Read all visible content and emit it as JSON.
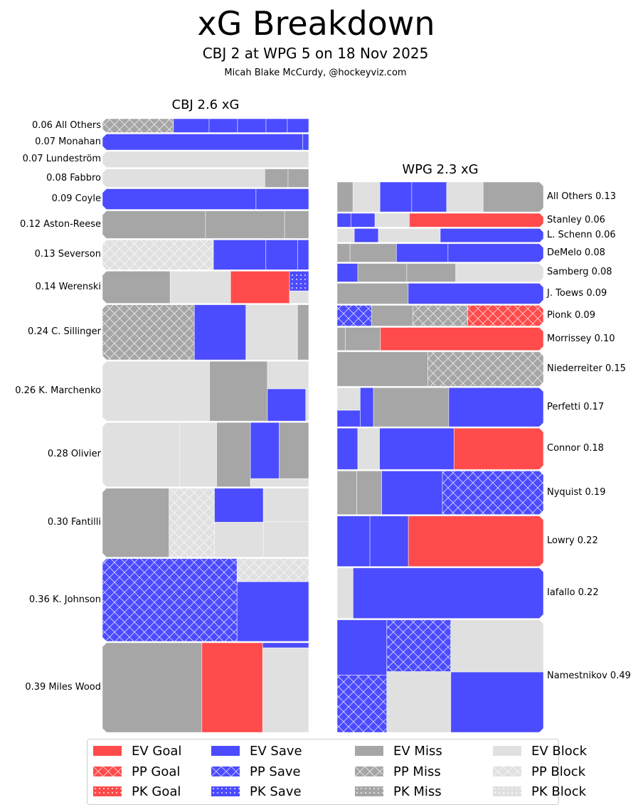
{
  "header": {
    "title": "xG Breakdown",
    "subtitle": "CBJ 2 at WPG 5 on 18 Nov 2025",
    "byline": "Micah Blake McCurdy, @hockeyviz.com"
  },
  "colors": {
    "EV Goal": "#ff4b4b",
    "PP Goal": "#ff4b4b",
    "PK Goal": "#ff4b4b",
    "EV Save": "#4b4bff",
    "PP Save": "#4b4bff",
    "PK Save": "#4b4bff",
    "EV Miss": "#a6a6a6",
    "PP Miss": "#a6a6a6",
    "PK Miss": "#a6a6a6",
    "EV Block": "#e0e0e0",
    "PP Block": "#e0e0e0",
    "PK Block": "#e0e0e0"
  },
  "legend": {
    "items": [
      "EV Goal",
      "EV Save",
      "EV Miss",
      "EV Block",
      "PP Goal",
      "PP Save",
      "PP Miss",
      "PP Block",
      "PK Goal",
      "PK Save",
      "PK Miss",
      "PK Block"
    ]
  },
  "chart_data": [
    {
      "type": "treemap",
      "title": "CBJ 2.6 xG",
      "team": "CBJ",
      "total_xg": 2.6,
      "label_side": "left",
      "players": [
        {
          "label": "0.06 All Others",
          "xg": 0.06,
          "shots": [
            [
              "PP Miss",
              0.02
            ],
            [
              "EV Save",
              0.01
            ],
            [
              "EV Save",
              0.008
            ],
            [
              "EV Save",
              0.008
            ],
            [
              "EV Save",
              0.006
            ],
            [
              "EV Save",
              0.006
            ]
          ]
        },
        {
          "label": "0.07 Monahan",
          "xg": 0.07,
          "shots": [
            [
              "EV Save",
              0.068
            ],
            [
              "EV Save",
              0.002
            ]
          ]
        },
        {
          "label": "0.07 Lundeström",
          "xg": 0.07,
          "shots": [
            [
              "EV Block",
              0.07
            ]
          ]
        },
        {
          "label": "0.08 Fabbro",
          "xg": 0.08,
          "shots": [
            [
              "EV Block",
              0.063
            ],
            [
              "EV Miss",
              0.009
            ],
            [
              "EV Miss",
              0.008
            ]
          ]
        },
        {
          "label": "0.09 Coyle",
          "xg": 0.09,
          "shots": [
            [
              "EV Save",
              0.067
            ],
            [
              "EV Save",
              0.023
            ]
          ]
        },
        {
          "label": "0.12 Aston-Reese",
          "xg": 0.12,
          "shots": [
            [
              "EV Miss",
              0.06
            ],
            [
              "EV Miss",
              0.046
            ],
            [
              "EV Miss",
              0.014
            ]
          ]
        },
        {
          "label": "0.13 Severson",
          "xg": 0.13,
          "shots": [
            [
              "PP Block",
              0.07
            ],
            [
              "EV Save",
              0.033
            ],
            [
              "EV Save",
              0.02
            ],
            [
              "EV Save",
              0.007
            ]
          ]
        },
        {
          "label": "0.14 Werenski",
          "xg": 0.14,
          "shots": [
            [
              "EV Miss",
              0.046
            ],
            [
              "EV Block",
              0.041
            ],
            [
              "EV Goal",
              0.04
            ],
            [
              "PK Save",
              0.008
            ],
            [
              "EV Block",
              0.005
            ]
          ]
        },
        {
          "label": "0.24 C. Sillinger",
          "xg": 0.24,
          "shots": [
            [
              "PP Miss",
              0.107
            ],
            [
              "EV Save",
              0.06
            ],
            [
              "EV Block",
              0.06
            ],
            [
              "EV Miss",
              0.013
            ]
          ]
        },
        {
          "label": "0.26 K. Marchenko",
          "xg": 0.26,
          "shots": [
            [
              "EV Block",
              0.135
            ],
            [
              "EV Miss",
              0.073
            ],
            [
              "EV Block",
              0.024
            ],
            [
              "EV Save",
              0.026
            ],
            [
              "EV Block",
              0.002
            ]
          ]
        },
        {
          "label": "0.28 Olivier",
          "xg": 0.28,
          "shots": [
            [
              "EV Block",
              0.105
            ],
            [
              "EV Block",
              0.05
            ],
            [
              "EV Miss",
              0.046
            ],
            [
              "EV Save",
              0.034
            ],
            [
              "EV Miss",
              0.035
            ],
            [
              "EV Block",
              0.01
            ]
          ]
        },
        {
          "label": "0.30 Fantilli",
          "xg": 0.3,
          "shots": [
            [
              "EV Miss",
              0.097
            ],
            [
              "PP Block",
              0.066
            ],
            [
              "EV Save",
              0.035
            ],
            [
              "EV Block",
              0.036
            ],
            [
              "EV Block",
              0.032
            ],
            [
              "EV Block",
              0.034
            ]
          ]
        },
        {
          "label": "0.36 K. Johnson",
          "xg": 0.36,
          "shots": [
            [
              "PP Save",
              0.235
            ],
            [
              "PP Block",
              0.035
            ],
            [
              "EV Save",
              0.09
            ]
          ]
        },
        {
          "label": "0.39 Miles Wood",
          "xg": 0.39,
          "shots": [
            [
              "EV Miss",
              0.188
            ],
            [
              "EV Goal",
              0.115
            ],
            [
              "EV Save",
              0.005
            ],
            [
              "EV Block",
              0.082
            ]
          ]
        }
      ]
    },
    {
      "type": "treemap",
      "title": "WPG 2.3 xG",
      "team": "WPG",
      "total_xg": 2.3,
      "label_side": "right",
      "players": [
        {
          "label": "All Others 0.13",
          "xg": 0.13,
          "shots": [
            [
              "EV Miss",
              0.01
            ],
            [
              "EV Block",
              0.017
            ],
            [
              "EV Save",
              0.02
            ],
            [
              "EV Save",
              0.022
            ],
            [
              "EV Block",
              0.023
            ],
            [
              "EV Miss",
              0.038
            ]
          ]
        },
        {
          "label": "Stanley 0.06",
          "xg": 0.06,
          "shots": [
            [
              "EV Save",
              0.004
            ],
            [
              "EV Save",
              0.007
            ],
            [
              "EV Block",
              0.01
            ],
            [
              "EV Goal",
              0.039
            ]
          ]
        },
        {
          "label": "L. Schenn 0.06",
          "xg": 0.06,
          "shots": [
            [
              "EV Block",
              0.005
            ],
            [
              "EV Save",
              0.007
            ],
            [
              "EV Block",
              0.018
            ],
            [
              "EV Save",
              0.03
            ]
          ]
        },
        {
          "label": "DeMelo 0.08",
          "xg": 0.08,
          "shots": [
            [
              "EV Miss",
              0.005
            ],
            [
              "EV Miss",
              0.018
            ],
            [
              "EV Save",
              0.02
            ],
            [
              "EV Save",
              0.037
            ]
          ]
        },
        {
          "label": "Samberg 0.08",
          "xg": 0.08,
          "shots": [
            [
              "EV Save",
              0.008
            ],
            [
              "EV Miss",
              0.019
            ],
            [
              "EV Miss",
              0.019
            ],
            [
              "EV Block",
              0.034
            ]
          ]
        },
        {
          "label": "J. Toews 0.09",
          "xg": 0.09,
          "shots": [
            [
              "EV Miss",
              0.031
            ],
            [
              "EV Save",
              0.059
            ]
          ]
        },
        {
          "label": "Pionk 0.09",
          "xg": 0.09,
          "shots": [
            [
              "PP Save",
              0.015
            ],
            [
              "EV Miss",
              0.018
            ],
            [
              "PP Miss",
              0.024
            ],
            [
              "PP Goal",
              0.033
            ]
          ]
        },
        {
          "label": "Morrissey 0.10",
          "xg": 0.1,
          "shots": [
            [
              "EV Miss",
              0.004
            ],
            [
              "EV Miss",
              0.017
            ],
            [
              "EV Goal",
              0.079
            ]
          ]
        },
        {
          "label": "Niederreiter 0.15",
          "xg": 0.15,
          "shots": [
            [
              "EV Miss",
              0.066
            ],
            [
              "PP Miss",
              0.084
            ]
          ]
        },
        {
          "label": "Perfetti 0.17",
          "xg": 0.17,
          "shots": [
            [
              "EV Block",
              0.011
            ],
            [
              "EV Save",
              0.008
            ],
            [
              "EV Save",
              0.011
            ],
            [
              "EV Miss",
              0.062
            ],
            [
              "EV Save",
              0.078
            ]
          ]
        },
        {
          "label": "Connor 0.18",
          "xg": 0.18,
          "shots": [
            [
              "EV Save",
              0.018
            ],
            [
              "EV Block",
              0.019
            ],
            [
              "EV Save",
              0.065
            ],
            [
              "EV Goal",
              0.078
            ]
          ]
        },
        {
          "label": "Nyquist 0.19",
          "xg": 0.19,
          "shots": [
            [
              "EV Miss",
              0.018
            ],
            [
              "EV Miss",
              0.023
            ],
            [
              "EV Save",
              0.056
            ],
            [
              "PP Save",
              0.093
            ]
          ]
        },
        {
          "label": "Lowry 0.22",
          "xg": 0.22,
          "shots": [
            [
              "EV Save",
              0.035
            ],
            [
              "EV Save",
              0.041
            ],
            [
              "EV Goal",
              0.144
            ]
          ]
        },
        {
          "label": "Iafallo 0.22",
          "xg": 0.22,
          "shots": [
            [
              "EV Block",
              0.017
            ],
            [
              "EV Save",
              0.203
            ]
          ]
        },
        {
          "label": "Namestnikov 0.49",
          "xg": 0.49,
          "shots": [
            [
              "EV Save",
              0.058
            ],
            [
              "PP Save",
              0.06
            ],
            [
              "PP Save",
              0.07
            ],
            [
              "EV Block",
              0.082
            ],
            [
              "EV Block",
              0.102
            ],
            [
              "EV Save",
              0.118
            ]
          ]
        }
      ]
    }
  ]
}
